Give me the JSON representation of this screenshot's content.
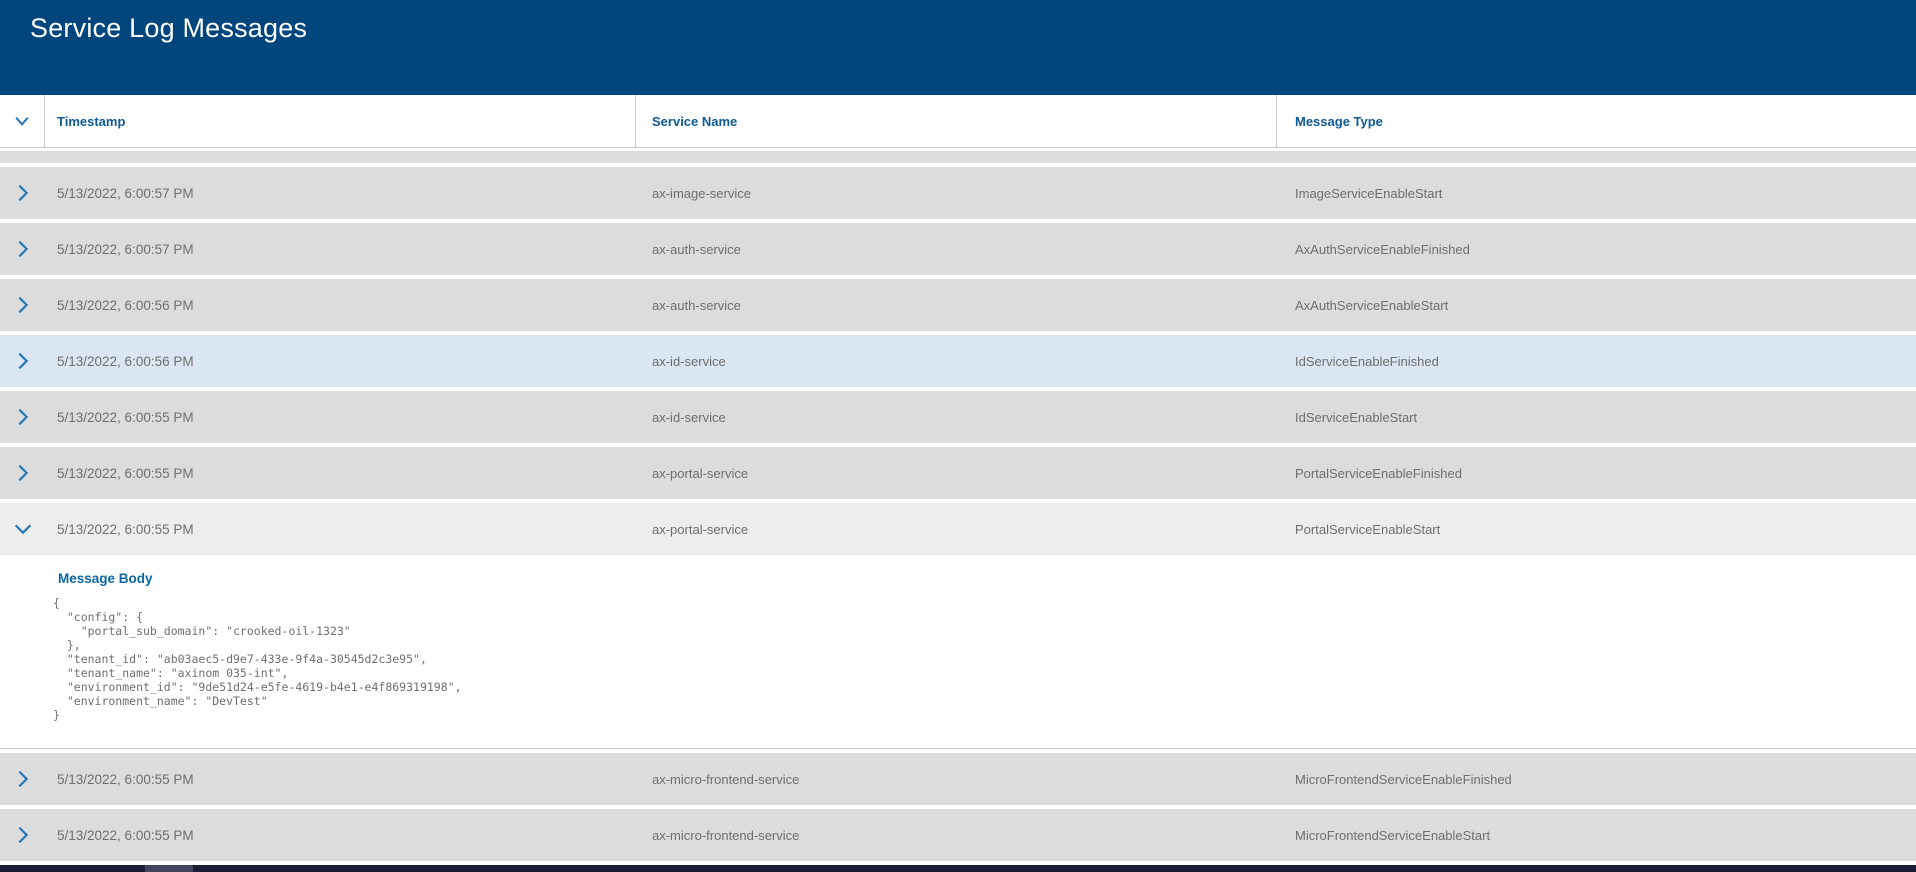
{
  "app": {
    "title": "Service Log Messages"
  },
  "colors": {
    "appbar_bg": "#00457c",
    "header_text": "#0e5a96",
    "chevron_blue": "#2579b8",
    "row_bg": "#dcdcdc",
    "row_highlight_bg": "#dae6f1",
    "expanded_row_bg": "#ededed",
    "row_text": "#6e6e6e",
    "detail_label_blue": "#0a67a5",
    "scrollbar_track": "#1b1e32",
    "scrollbar_thumb": "#40435a"
  },
  "table": {
    "columns": [
      "Timestamp",
      "Service Name",
      "Message Type"
    ],
    "header_icon": "chevron-down-icon",
    "rows": [
      {
        "partial": true
      },
      {
        "timestamp": "5/13/2022, 6:00:57 PM",
        "service": "ax-image-service",
        "message_type": "ImageServiceEnableStart",
        "state": "collapsed"
      },
      {
        "timestamp": "5/13/2022, 6:00:57 PM",
        "service": "ax-auth-service",
        "message_type": "AxAuthServiceEnableFinished",
        "state": "collapsed"
      },
      {
        "timestamp": "5/13/2022, 6:00:56 PM",
        "service": "ax-auth-service",
        "message_type": "AxAuthServiceEnableStart",
        "state": "collapsed"
      },
      {
        "timestamp": "5/13/2022, 6:00:56 PM",
        "service": "ax-id-service",
        "message_type": "IdServiceEnableFinished",
        "state": "collapsed",
        "highlighted": true
      },
      {
        "timestamp": "5/13/2022, 6:00:55 PM",
        "service": "ax-id-service",
        "message_type": "IdServiceEnableStart",
        "state": "collapsed"
      },
      {
        "timestamp": "5/13/2022, 6:00:55 PM",
        "service": "ax-portal-service",
        "message_type": "PortalServiceEnableFinished",
        "state": "collapsed"
      },
      {
        "timestamp": "5/13/2022, 6:00:55 PM",
        "service": "ax-portal-service",
        "message_type": "PortalServiceEnableStart",
        "state": "expanded"
      },
      {
        "timestamp": "5/13/2022, 6:00:55 PM",
        "service": "ax-micro-frontend-service",
        "message_type": "MicroFrontendServiceEnableFinished",
        "state": "collapsed"
      },
      {
        "timestamp": "5/13/2022, 6:00:55 PM",
        "service": "ax-micro-frontend-service",
        "message_type": "MicroFrontendServiceEnableStart",
        "state": "collapsed"
      }
    ],
    "detail": {
      "label": "Message Body",
      "body": "{\n  \"config\": {\n    \"portal_sub_domain\": \"crooked-oil-1323\"\n  },\n  \"tenant_id\": \"ab03aec5-d9e7-433e-9f4a-30545d2c3e95\",\n  \"tenant_name\": \"axinom 035-int\",\n  \"environment_id\": \"9de51d24-e5fe-4619-b4e1-e4f869319198\",\n  \"environment_name\": \"DevTest\"\n}"
    }
  }
}
